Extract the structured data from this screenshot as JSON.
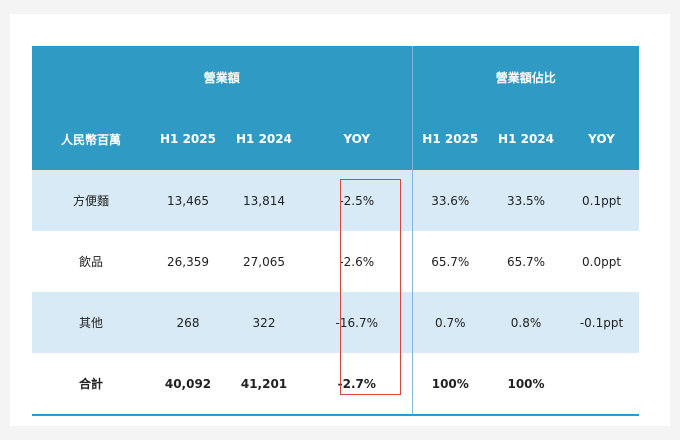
{
  "group_headers": {
    "revenue": "營業額",
    "share": "營業額佔比"
  },
  "columns": [
    "人民幣百萬",
    "H1 2025",
    "H1 2024",
    "YOY",
    "H1 2025",
    "H1 2024",
    "YOY"
  ],
  "rows": [
    [
      "方便麵",
      "13,465",
      "13,814",
      "-2.5%",
      "33.6%",
      "33.5%",
      "0.1ppt"
    ],
    [
      "飲品",
      "26,359",
      "27,065",
      "-2.6%",
      "65.7%",
      "65.7%",
      "0.0ppt"
    ],
    [
      "其他",
      "268",
      "322",
      "-16.7%",
      "0.7%",
      "0.8%",
      "-0.1ppt"
    ],
    [
      "合計",
      "40,092",
      "41,201",
      "-2.7%",
      "100%",
      "100%",
      ""
    ]
  ],
  "colors": {
    "header_bg": "#2f9bc5",
    "alt_row_bg": "#d9eaf7",
    "highlight_border": "#d9463a"
  }
}
